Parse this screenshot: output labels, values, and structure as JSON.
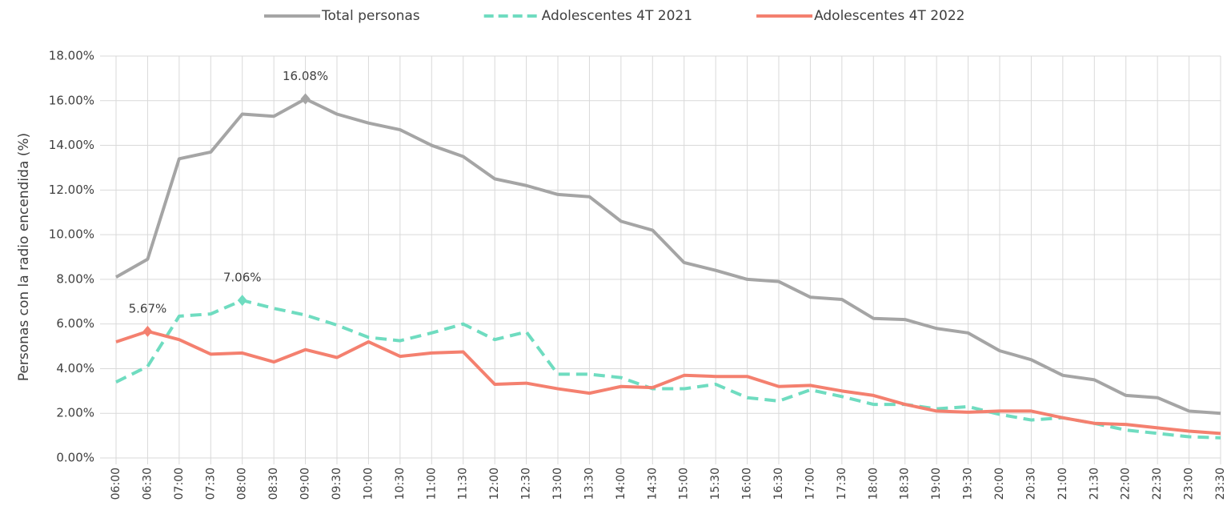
{
  "chart_data": {
    "type": "line",
    "y_label": "Personas con la radio encendida (%)",
    "categories": [
      "06:00",
      "06:30",
      "07:00",
      "07:30",
      "08:00",
      "08:30",
      "09:00",
      "09:30",
      "10:00",
      "10:30",
      "11:00",
      "11:30",
      "12:00",
      "12:30",
      "13:00",
      "13:30",
      "14:00",
      "14:30",
      "15:00",
      "15:30",
      "16:00",
      "16:30",
      "17:00",
      "17:30",
      "18:00",
      "18:30",
      "19:00",
      "19:30",
      "20:00",
      "20:30",
      "21:00",
      "21:30",
      "22:00",
      "22:30",
      "23:00",
      "23:30"
    ],
    "series": [
      {
        "name": "Total personas",
        "color": "#a5a5a5",
        "dash": false,
        "values": [
          8.1,
          8.9,
          13.4,
          13.7,
          15.4,
          15.3,
          16.08,
          15.4,
          15.0,
          14.7,
          14.0,
          13.5,
          12.5,
          12.2,
          11.8,
          11.7,
          10.6,
          10.2,
          8.75,
          8.4,
          8.0,
          7.9,
          7.2,
          7.1,
          6.25,
          6.2,
          5.8,
          5.6,
          4.8,
          4.4,
          3.7,
          3.5,
          2.8,
          2.7,
          2.1,
          2.0
        ],
        "value_labels": [
          null,
          null,
          null,
          null,
          null,
          null,
          "16.08%",
          null,
          null,
          null,
          null,
          null,
          null,
          null,
          null,
          null,
          null,
          null,
          null,
          null,
          null,
          null,
          null,
          null,
          null,
          null,
          null,
          null,
          null,
          null,
          null,
          null,
          null,
          null,
          null,
          null
        ]
      },
      {
        "name": "Adolescentes 4T 2021",
        "color": "#6fdcc0",
        "dash": true,
        "values": [
          3.4,
          4.1,
          6.35,
          6.45,
          7.06,
          6.7,
          6.4,
          5.95,
          5.4,
          5.25,
          5.6,
          6.0,
          5.3,
          5.65,
          3.75,
          3.75,
          3.6,
          3.1,
          3.1,
          3.3,
          2.7,
          2.55,
          3.05,
          2.75,
          2.4,
          2.4,
          2.2,
          2.3,
          1.95,
          1.7,
          1.8,
          1.55,
          1.25,
          1.1,
          0.95,
          0.9
        ],
        "value_labels": [
          null,
          null,
          null,
          null,
          "7.06%",
          null,
          null,
          null,
          null,
          null,
          null,
          null,
          null,
          null,
          null,
          null,
          null,
          null,
          null,
          null,
          null,
          null,
          null,
          null,
          null,
          null,
          null,
          null,
          null,
          null,
          null,
          null,
          null,
          null,
          null,
          null
        ]
      },
      {
        "name": "Adolescentes 4T 2022",
        "color": "#f4806f",
        "dash": false,
        "values": [
          5.2,
          5.67,
          5.3,
          4.65,
          4.7,
          4.3,
          4.85,
          4.5,
          5.2,
          4.55,
          4.7,
          4.75,
          3.3,
          3.35,
          3.1,
          2.9,
          3.2,
          3.15,
          3.7,
          3.65,
          3.65,
          3.2,
          3.25,
          3.0,
          2.8,
          2.4,
          2.1,
          2.05,
          2.1,
          2.1,
          1.8,
          1.55,
          1.5,
          1.35,
          1.2,
          1.1
        ],
        "value_labels": [
          null,
          "5.67%",
          null,
          null,
          null,
          null,
          null,
          null,
          null,
          null,
          null,
          null,
          null,
          null,
          null,
          null,
          null,
          null,
          null,
          null,
          null,
          null,
          null,
          null,
          null,
          null,
          null,
          null,
          null,
          null,
          null,
          null,
          null,
          null,
          null,
          null
        ]
      }
    ],
    "ylim": [
      0,
      18
    ],
    "yticks": [
      {
        "value": 0,
        "label": "0.00%"
      },
      {
        "value": 2,
        "label": "2.00%"
      },
      {
        "value": 4,
        "label": "4.00%"
      },
      {
        "value": 6,
        "label": "6.00%"
      },
      {
        "value": 8,
        "label": "8.00%"
      },
      {
        "value": 10,
        "label": "10.00%"
      },
      {
        "value": 12,
        "label": "12.00%"
      },
      {
        "value": 14,
        "label": "14.00%"
      },
      {
        "value": 16,
        "label": "16.00%"
      },
      {
        "value": 18,
        "label": "18.00%"
      }
    ],
    "grid": true,
    "legend": "top"
  }
}
